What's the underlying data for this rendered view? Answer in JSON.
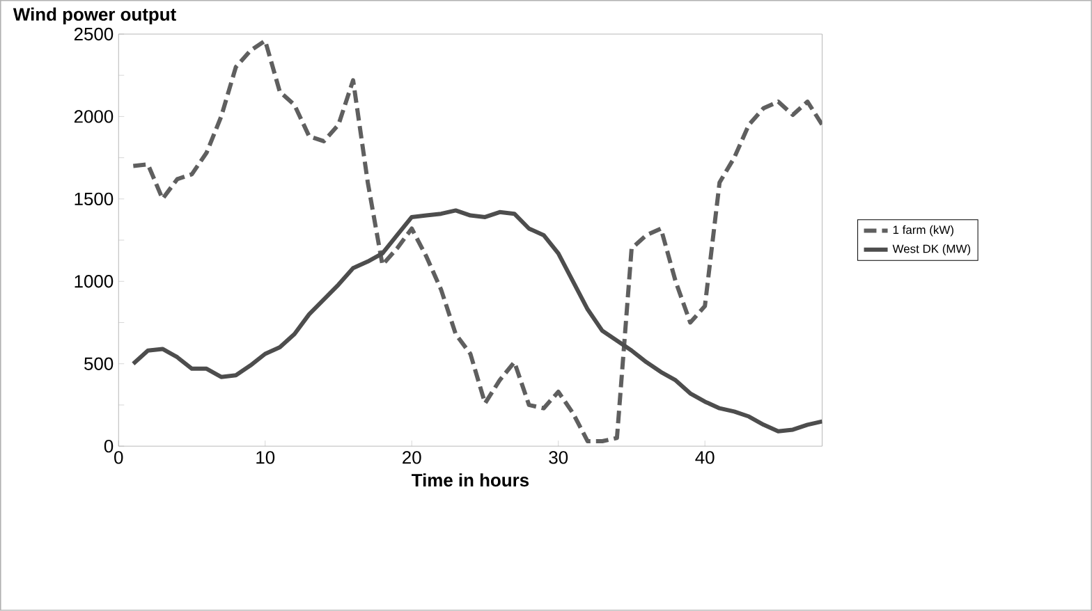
{
  "chart_data": {
    "type": "line",
    "title": "Wind power output",
    "xlabel": "Time in hours",
    "x": [
      1,
      2,
      3,
      4,
      5,
      6,
      7,
      8,
      9,
      10,
      11,
      12,
      13,
      14,
      15,
      16,
      17,
      18,
      19,
      20,
      21,
      22,
      23,
      24,
      25,
      26,
      27,
      28,
      29,
      30,
      31,
      32,
      33,
      34,
      35,
      36,
      37,
      38,
      39,
      40,
      41,
      42,
      43,
      44,
      45,
      46,
      47,
      48
    ],
    "series": [
      {
        "name": "1 farm (kW)",
        "color": "#5f5f5f",
        "line_style": "dashed",
        "values": [
          1700,
          1710,
          1500,
          1620,
          1650,
          1780,
          2000,
          2300,
          2400,
          2460,
          2150,
          2070,
          1880,
          1850,
          1950,
          2220,
          1600,
          1100,
          1200,
          1320,
          1150,
          950,
          680,
          560,
          260,
          400,
          510,
          250,
          230,
          330,
          200,
          30,
          30,
          50,
          1200,
          1280,
          1320,
          1000,
          750,
          850,
          1600,
          1750,
          1950,
          2050,
          2090,
          2010,
          2090,
          1950
        ]
      },
      {
        "name": "West DK (MW)",
        "color": "#4d4d4d",
        "line_style": "solid",
        "values": [
          500,
          580,
          590,
          540,
          470,
          470,
          420,
          430,
          490,
          560,
          600,
          680,
          800,
          890,
          980,
          1080,
          1120,
          1170,
          1280,
          1390,
          1400,
          1410,
          1430,
          1400,
          1390,
          1420,
          1410,
          1320,
          1280,
          1170,
          1000,
          830,
          700,
          640,
          580,
          510,
          450,
          400,
          320,
          270,
          230,
          210,
          180,
          130,
          90,
          100,
          130,
          150
        ]
      }
    ],
    "xlim": [
      0,
      48
    ],
    "xticks": [
      0,
      10,
      20,
      30,
      40
    ],
    "ylim": [
      0,
      2500
    ],
    "yticks": [
      0,
      {
        "value": 250,
        "label": null
      },
      500,
      {
        "value": 750,
        "label": null
      },
      1000,
      {
        "value": 1250,
        "label": null
      },
      1500,
      {
        "value": 1750,
        "label": null
      },
      2000,
      {
        "value": 2250,
        "label": null
      },
      2500
    ],
    "grid": false,
    "legend": "right",
    "marker": "none"
  }
}
